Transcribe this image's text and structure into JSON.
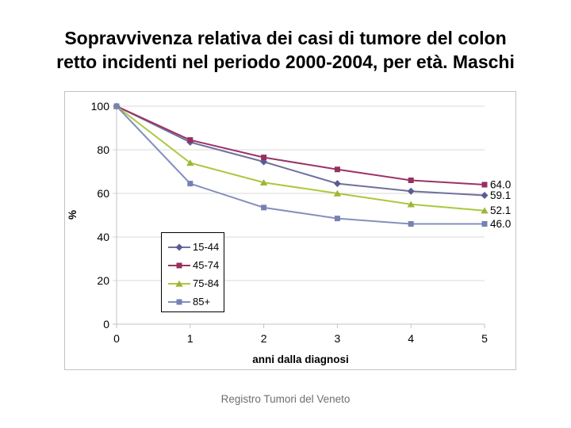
{
  "title": {
    "line1": "Sopravvivenza relativa dei casi di tumore del colon",
    "line2": "retto incidenti nel periodo 2000-2004, per età. Maschi"
  },
  "footer": {
    "text": "Registro Tumori del Veneto"
  },
  "chart_data": {
    "type": "line",
    "title": "",
    "xlabel": "anni dalla diagnosi",
    "ylabel": "%",
    "x": [
      0,
      1,
      2,
      3,
      4,
      5
    ],
    "xlim": [
      0,
      5
    ],
    "ylim": [
      0,
      100
    ],
    "xticks": [
      0,
      1,
      2,
      3,
      4,
      5
    ],
    "yticks": [
      0,
      20,
      40,
      60,
      80,
      100
    ],
    "grid": "horizontal",
    "legend_position": "inside-bottom-left",
    "series": [
      {
        "name": "15-44",
        "values": [
          100,
          83.5,
          74.5,
          64.5,
          61,
          59.1
        ],
        "end_label": "59.1",
        "marker": "diamond",
        "color": "#70709F",
        "marker_color": "#5B5B94"
      },
      {
        "name": "45-74",
        "values": [
          100,
          84.5,
          76.5,
          71,
          66,
          64
        ],
        "end_label": "64.0",
        "marker": "square",
        "color": "#9B3365",
        "marker_color": "#96305F"
      },
      {
        "name": "75-84",
        "values": [
          100,
          74,
          65,
          60,
          55,
          52.1
        ],
        "end_label": "52.1",
        "marker": "triangle",
        "color": "#ABC83E",
        "marker_color": "#9EB637"
      },
      {
        "name": "85+",
        "values": [
          100,
          64.5,
          53.5,
          48.5,
          46,
          46
        ],
        "end_label": "46.0",
        "marker": "square",
        "color": "#8490BE",
        "marker_color": "#7681B3"
      }
    ],
    "colors": {
      "gridline": "#D9D9D9",
      "axis": "#C3C3C3",
      "frame_border": "#C3C3C3",
      "legend_border": "#000000",
      "tick_text": "#000000",
      "footer_text": "#6F6F6F",
      "background": "#FFFFFF"
    }
  }
}
